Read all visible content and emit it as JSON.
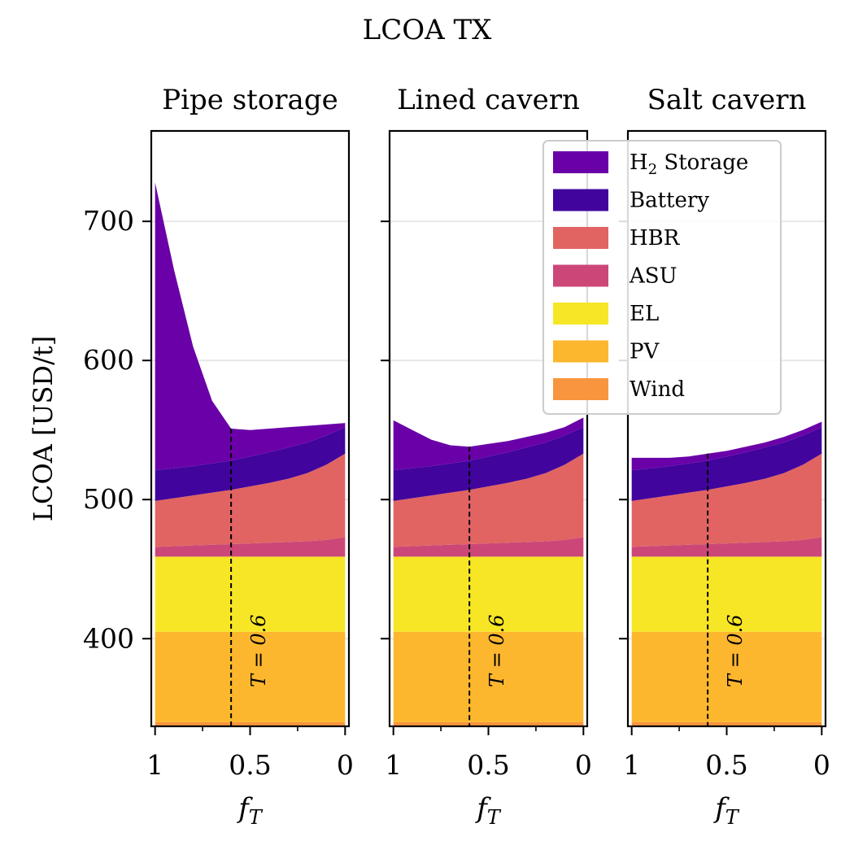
{
  "chart_data": {
    "type": "area",
    "stacked": true,
    "title": "LCOA TX",
    "ylabel": "LCOA [USD/t]",
    "xlabel": "f_T",
    "xlabel_main": "f",
    "xlabel_sub": "T",
    "x_reversed": true,
    "xlim": [
      1.02,
      -0.02
    ],
    "ylim": [
      337,
      765
    ],
    "yticks": [
      400,
      500,
      600,
      700
    ],
    "ytick_labels": [
      "400",
      "500",
      "600",
      "700"
    ],
    "xticks": [
      1,
      0.5,
      0
    ],
    "xtick_labels": [
      "1",
      "0.5",
      "0"
    ],
    "x_minor_ticks": [
      0.75,
      0.25
    ],
    "grid": "horizontal",
    "legend_position": "upper-right",
    "annotation": {
      "text": "T = 0.6",
      "x": 0.6
    },
    "layers": [
      {
        "name": "Wind",
        "color": "#f8953e"
      },
      {
        "name": "PV",
        "color": "#fdb72e"
      },
      {
        "name": "EL",
        "color": "#f6e626"
      },
      {
        "name": "ASU",
        "color": "#cc4778"
      },
      {
        "name": "HBR",
        "color": "#e16462"
      },
      {
        "name": "Battery",
        "color": "#41049d"
      },
      {
        "name": "H2 Storage",
        "color": "#6a00a8"
      }
    ],
    "legend": [
      {
        "key": "h2",
        "label_main": "H",
        "label_sub": "2",
        "label_rest": " Storage",
        "color": "#6a00a8"
      },
      {
        "key": "battery",
        "label": "Battery",
        "color": "#41049d"
      },
      {
        "key": "hbr",
        "label": "HBR",
        "color": "#e16462"
      },
      {
        "key": "asu",
        "label": "ASU",
        "color": "#cc4778"
      },
      {
        "key": "el",
        "label": "EL",
        "color": "#f6e626"
      },
      {
        "key": "pv",
        "label": "PV",
        "color": "#fdb72e"
      },
      {
        "key": "wind",
        "label": "Wind",
        "color": "#f8953e"
      }
    ],
    "x": [
      1.0,
      0.9,
      0.8,
      0.7,
      0.6,
      0.5,
      0.4,
      0.3,
      0.2,
      0.1,
      0.0
    ],
    "boundaries": {
      "wind_top": [
        340,
        340,
        340,
        340,
        340,
        340,
        340,
        340,
        340,
        340,
        340
      ],
      "pv_top": [
        405,
        405,
        405,
        405,
        405,
        405,
        405,
        405,
        405,
        405,
        405
      ],
      "el_top": [
        459,
        459,
        459,
        459,
        459,
        459,
        459,
        459,
        459,
        459,
        459
      ],
      "asu_top": [
        466,
        466.5,
        467,
        467.5,
        468,
        468.5,
        469,
        469.5,
        470,
        471,
        473
      ]
    },
    "panels": [
      {
        "title": "Pipe storage",
        "hbr_top": [
          499,
          501,
          503,
          505,
          507,
          509.5,
          512,
          515,
          519,
          525,
          533
        ],
        "battery_top": [
          521,
          522.5,
          524,
          526,
          528,
          531,
          534,
          537.5,
          541,
          546,
          552
        ],
        "h2_top": [
          728,
          665,
          610,
          571,
          551,
          550,
          551,
          552,
          553,
          554,
          555
        ]
      },
      {
        "title": "Lined cavern",
        "hbr_top": [
          499,
          501,
          503,
          505,
          507,
          509.5,
          512,
          515,
          519,
          525,
          533
        ],
        "battery_top": [
          521,
          522.5,
          524,
          526,
          528,
          531,
          534,
          537.5,
          541,
          546,
          552
        ],
        "h2_top": [
          557,
          550,
          543,
          539,
          538,
          540,
          542,
          545,
          548,
          552,
          559
        ]
      },
      {
        "title": "Salt cavern",
        "hbr_top": [
          499,
          501,
          503,
          505,
          507,
          509.5,
          512,
          515,
          519,
          525,
          533
        ],
        "battery_top": [
          521,
          522.5,
          524,
          526,
          528,
          531,
          534,
          537.5,
          541,
          546,
          552
        ],
        "h2_top": [
          530,
          530,
          530,
          531,
          533,
          535,
          538,
          541,
          545,
          550,
          556
        ]
      }
    ]
  }
}
